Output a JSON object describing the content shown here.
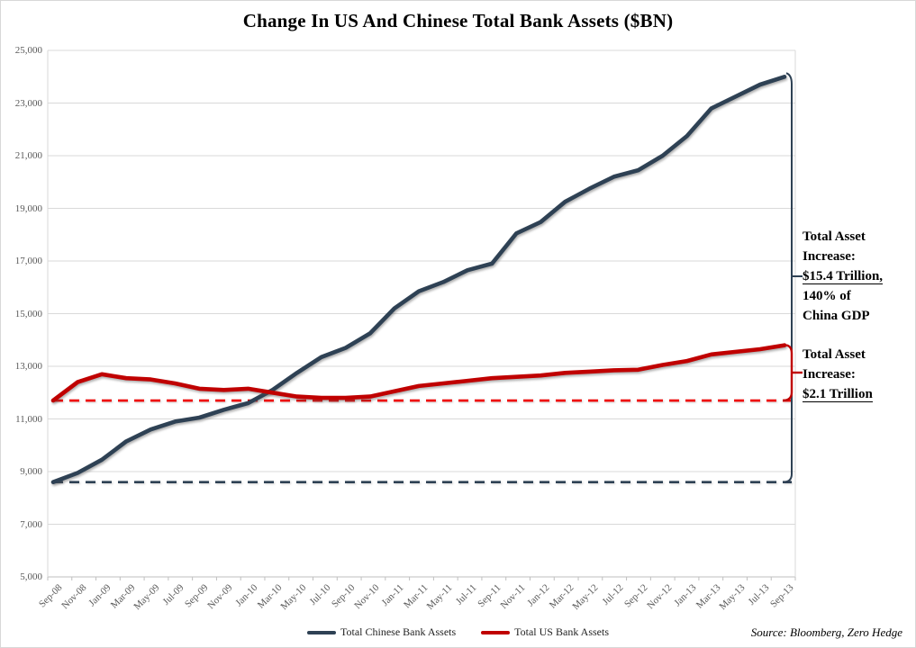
{
  "title": "Change In US And Chinese Total Bank Assets ($BN)",
  "source_note": "Source: Bloomberg, Zero Hedge",
  "colors": {
    "china_line": "#2E4154",
    "us_line": "#C00000",
    "us_baseline_dashed": "#F00000",
    "china_baseline_dashed": "#2E4154",
    "gridline": "#D9D9D9",
    "axis_line": "#BFBFBF",
    "tick_text": "#595959",
    "title_text": "#000000",
    "annotation_text": "#000000"
  },
  "legend": {
    "items": [
      {
        "label": "Total Chinese Bank Assets",
        "color": "#2E4154"
      },
      {
        "label": "Total US Bank Assets",
        "color": "#C00000"
      }
    ]
  },
  "annotations": [
    {
      "id": "china-increase",
      "lines": [
        {
          "text": "Total Asset",
          "underline": false
        },
        {
          "text": "Increase:",
          "underline": false
        },
        {
          "text": "$15.4 Trillion,",
          "underline": true
        },
        {
          "text": "140% of",
          "underline": false
        },
        {
          "text": "China GDP",
          "underline": false
        }
      ]
    },
    {
      "id": "us-increase",
      "lines": [
        {
          "text": "Total Asset",
          "underline": false
        },
        {
          "text": "Increase:",
          "underline": false
        },
        {
          "text": "$2.1 Trillion",
          "underline": true
        }
      ]
    }
  ],
  "chart_data": {
    "type": "line",
    "title": "Change In US And Chinese Total Bank Assets ($BN)",
    "categories": [
      "Sep-08",
      "Nov-08",
      "Jan-09",
      "Mar-09",
      "May-09",
      "Jul-09",
      "Sep-09",
      "Nov-09",
      "Jan-10",
      "Mar-10",
      "May-10",
      "Jul-10",
      "Sep-10",
      "Nov-10",
      "Jan-11",
      "Mar-11",
      "May-11",
      "Jul-11",
      "Sep-11",
      "Nov-11",
      "Jan-12",
      "Mar-12",
      "May-12",
      "Jul-12",
      "Sep-12",
      "Nov-12",
      "Jan-13",
      "Mar-13",
      "May-13",
      "Jul-13",
      "Sep-13"
    ],
    "series": [
      {
        "name": "Total Chinese Bank Assets",
        "color": "#2E4154",
        "values": [
          8600,
          8950,
          9450,
          10150,
          10600,
          10900,
          11050,
          11350,
          11600,
          12100,
          12750,
          13350,
          13700,
          14250,
          15200,
          15850,
          16200,
          16650,
          16900,
          18050,
          18480,
          19250,
          19750,
          20200,
          20450,
          21000,
          21750,
          22800,
          23250,
          23700,
          24000
        ]
      },
      {
        "name": "Total US Bank Assets",
        "color": "#C00000",
        "values": [
          11700,
          12400,
          12700,
          12550,
          12500,
          12350,
          12150,
          12100,
          12150,
          12000,
          11850,
          11800,
          11800,
          11850,
          12050,
          12250,
          12350,
          12450,
          12550,
          12600,
          12650,
          12750,
          12800,
          12850,
          12870,
          13050,
          13200,
          13450,
          13550,
          13650,
          13800
        ]
      }
    ],
    "reference_lines": [
      {
        "name": "china-start-level",
        "value": 8600,
        "style": "dashed",
        "color": "#2E4154"
      },
      {
        "name": "us-start-level",
        "value": 11700,
        "style": "dashed",
        "color": "#F00000"
      }
    ],
    "y_axis": {
      "min": 5000,
      "max": 25000,
      "tick_step": 2000,
      "tick_labels": [
        "5,000",
        "7,000",
        "9,000",
        "11,000",
        "13,000",
        "15,000",
        "17,000",
        "19,000",
        "21,000",
        "23,000",
        "25,000"
      ]
    },
    "x_axis_label_rotation": -45,
    "grid": true,
    "legend_position": "bottom"
  }
}
